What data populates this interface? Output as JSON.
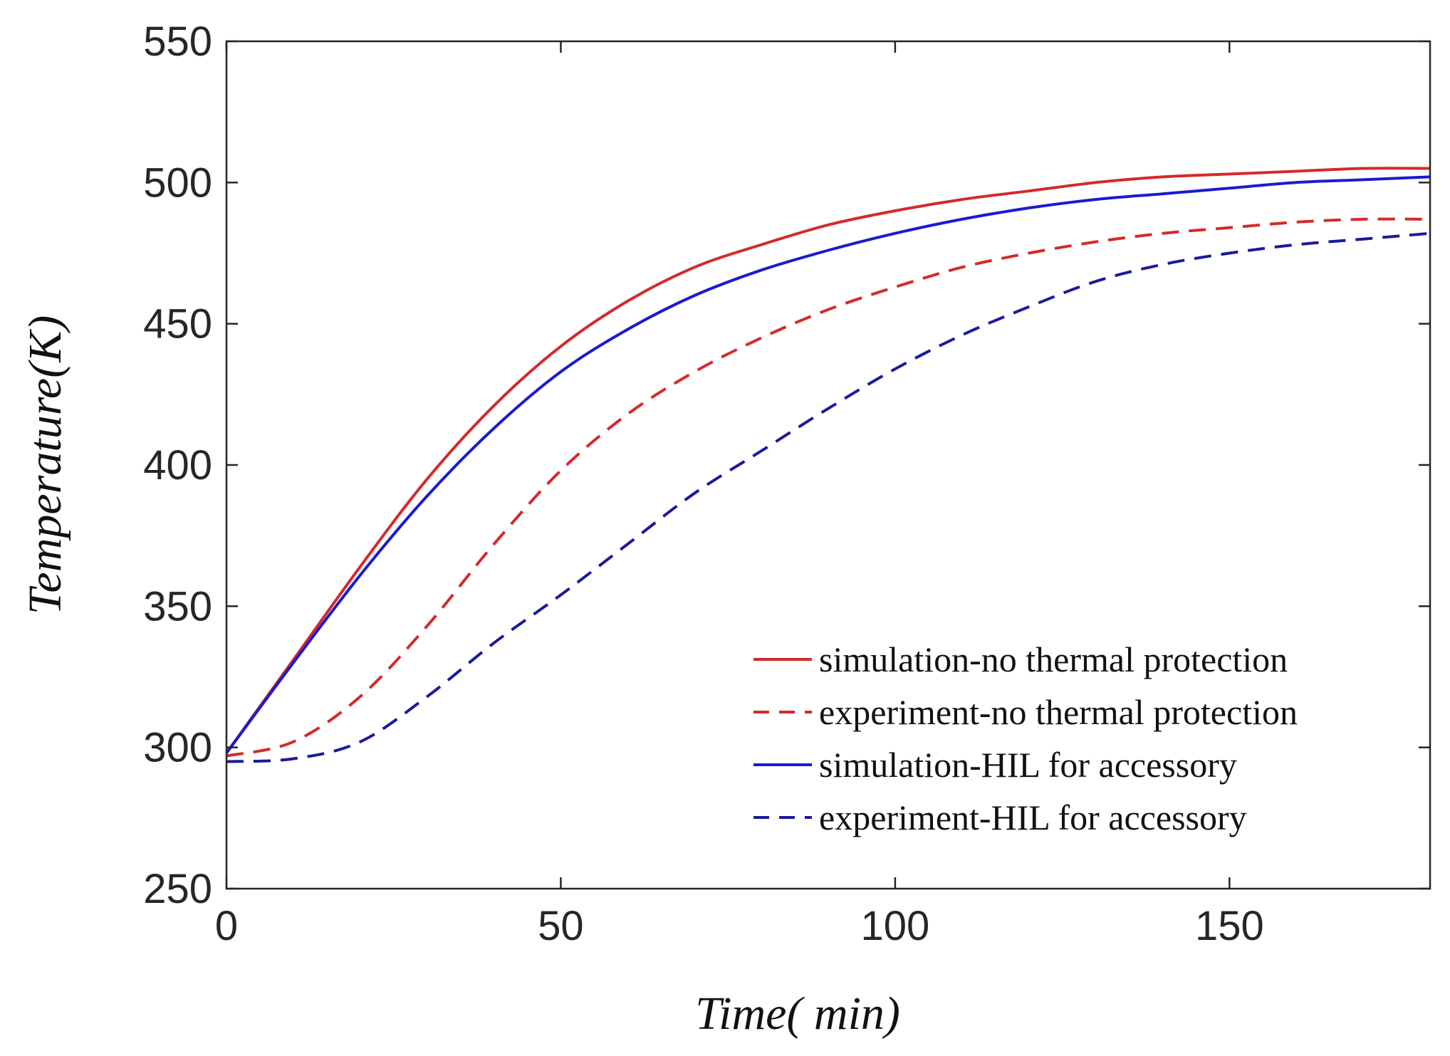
{
  "chart_data": {
    "type": "line",
    "title": "",
    "xlabel": "Time( min)",
    "ylabel": "Temperature(K)",
    "xlim": [
      0,
      180
    ],
    "ylim": [
      250,
      550
    ],
    "xticks": [
      0,
      50,
      100,
      150
    ],
    "yticks": [
      250,
      300,
      350,
      400,
      450,
      500,
      550
    ],
    "grid": false,
    "legend_position": "bottom-right",
    "x": [
      0,
      10,
      20,
      30,
      40,
      50,
      60,
      70,
      80,
      90,
      100,
      110,
      120,
      130,
      140,
      150,
      160,
      170,
      180
    ],
    "series": [
      {
        "name": "simulation-no thermal protection",
        "color": "#d42a2a",
        "style": "solid",
        "values": [
          298,
          331,
          364,
          395,
          421,
          442,
          458,
          470,
          478,
          485,
          490,
          494,
          497,
          500,
          502,
          503,
          504,
          505,
          505
        ]
      },
      {
        "name": "experiment-no thermal protection",
        "color": "#d42a2a",
        "style": "dashed",
        "values": [
          297,
          302,
          318,
          343,
          372,
          398,
          418,
          433,
          445,
          455,
          463,
          470,
          475,
          479,
          482,
          484,
          486,
          487,
          487
        ]
      },
      {
        "name": "simulation-HIL for accessory",
        "color": "#1a1ad2",
        "style": "solid",
        "values": [
          298,
          330,
          361,
          389,
          413,
          433,
          448,
          460,
          469,
          476,
          482,
          487,
          491,
          494,
          496,
          498,
          500,
          501,
          502
        ]
      },
      {
        "name": "experiment-HIL for accessory",
        "color": "#1a1a9c",
        "style": "dashed",
        "values": [
          295,
          296,
          302,
          318,
          337,
          354,
          372,
          390,
          405,
          420,
          434,
          446,
          456,
          465,
          471,
          475,
          478,
          480,
          482
        ]
      }
    ]
  }
}
